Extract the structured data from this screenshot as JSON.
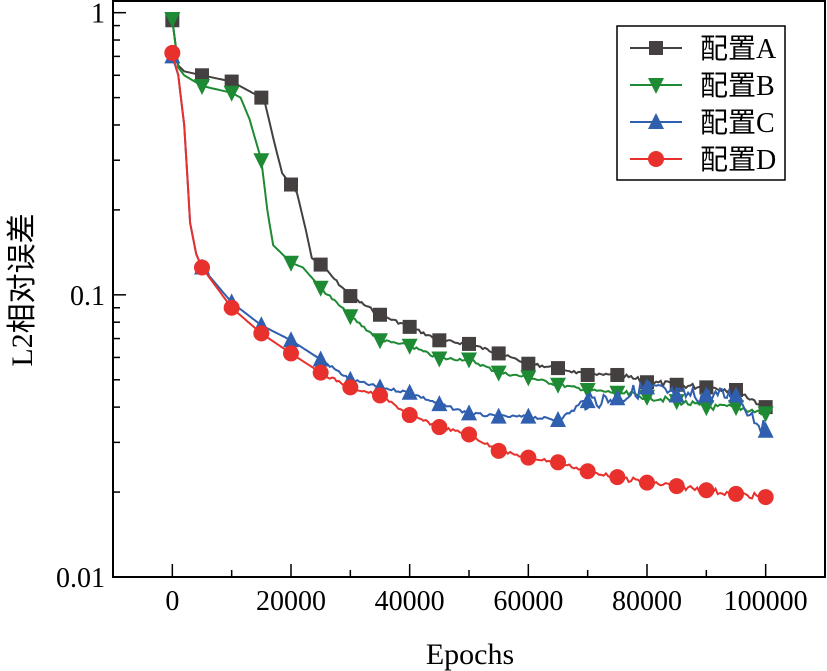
{
  "chart_data": {
    "type": "line",
    "title": "",
    "xlabel": "Epochs",
    "ylabel": "L2相对误差",
    "xlim": [
      -10000,
      110000
    ],
    "ylim": [
      0.01,
      1.1
    ],
    "yscale": "log",
    "grid": false,
    "legend_position": "top-right",
    "x_ticks": [
      0,
      20000,
      40000,
      60000,
      80000,
      100000
    ],
    "x_tick_labels": [
      "0",
      "20000",
      "40000",
      "60000",
      "80000",
      "100000"
    ],
    "y_ticks": [
      0.01,
      0.1,
      1
    ],
    "y_tick_labels": [
      "0.01",
      "0.1",
      "1"
    ],
    "series": [
      {
        "name": "配置A",
        "color": "#444040",
        "marker": "square",
        "x": [
          0,
          1000,
          2000,
          5000,
          10000,
          15000,
          15500,
          17000,
          18500,
          20000,
          21000,
          22500,
          23500,
          25000,
          30000,
          35000,
          40000,
          45000,
          50000,
          55000,
          60000,
          65000,
          70000,
          75000,
          80000,
          85000,
          90000,
          95000,
          100000
        ],
        "y": [
          0.94,
          0.65,
          0.62,
          0.6,
          0.57,
          0.5,
          0.49,
          0.36,
          0.27,
          0.246,
          0.23,
          0.17,
          0.135,
          0.128,
          0.099,
          0.085,
          0.077,
          0.069,
          0.067,
          0.062,
          0.057,
          0.055,
          0.052,
          0.052,
          0.049,
          0.048,
          0.047,
          0.046,
          0.04
        ]
      },
      {
        "name": "配置B",
        "color": "#1e8a34",
        "marker": "triangle-down",
        "x": [
          0,
          1000,
          2000,
          5000,
          10000,
          11500,
          13000,
          15000,
          16000,
          17000,
          20000,
          22000,
          25000,
          30000,
          35000,
          40000,
          45000,
          50000,
          55000,
          60000,
          65000,
          70000,
          75000,
          80000,
          85000,
          90000,
          95000,
          100000
        ],
        "y": [
          0.95,
          0.64,
          0.6,
          0.55,
          0.52,
          0.5,
          0.42,
          0.3,
          0.2,
          0.15,
          0.13,
          0.125,
          0.106,
          0.084,
          0.069,
          0.066,
          0.0595,
          0.059,
          0.053,
          0.051,
          0.048,
          0.046,
          0.045,
          0.0435,
          0.042,
          0.04,
          0.04,
          0.038
        ]
      },
      {
        "name": "配置C",
        "color": "#2f5fae",
        "marker": "triangle-up",
        "x": [
          0,
          1000,
          2000,
          3000,
          4000,
          5000,
          10000,
          15000,
          20000,
          25000,
          30000,
          35000,
          40000,
          45000,
          50000,
          55000,
          60000,
          65000,
          70000,
          75000,
          80000,
          85000,
          90000,
          95000,
          100000
        ],
        "y": [
          0.7,
          0.6,
          0.4,
          0.18,
          0.14,
          0.125,
          0.094,
          0.078,
          0.069,
          0.059,
          0.05,
          0.047,
          0.045,
          0.041,
          0.038,
          0.037,
          0.037,
          0.036,
          0.042,
          0.043,
          0.047,
          0.044,
          0.044,
          0.044,
          0.033
        ]
      },
      {
        "name": "配置D",
        "color": "#e8302c",
        "marker": "circle",
        "x": [
          0,
          1000,
          2000,
          3000,
          4000,
          5000,
          10000,
          15000,
          20000,
          25000,
          30000,
          35000,
          40000,
          45000,
          50000,
          55000,
          60000,
          65000,
          70000,
          75000,
          80000,
          85000,
          90000,
          95000,
          100000
        ],
        "y": [
          0.72,
          0.6,
          0.4,
          0.18,
          0.14,
          0.125,
          0.09,
          0.073,
          0.062,
          0.053,
          0.047,
          0.044,
          0.0375,
          0.034,
          0.032,
          0.028,
          0.0265,
          0.0255,
          0.0237,
          0.0226,
          0.0216,
          0.021,
          0.0203,
          0.0197,
          0.0192
        ]
      }
    ]
  }
}
